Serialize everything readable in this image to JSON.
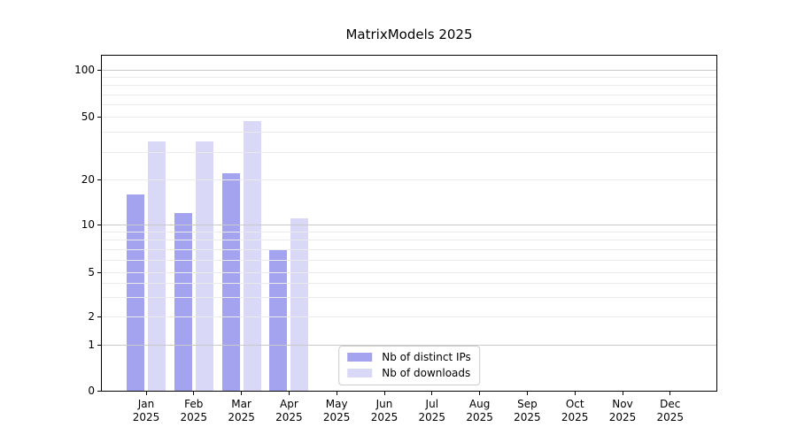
{
  "title": "MatrixModels 2025",
  "chart_data": {
    "type": "bar",
    "title": "MatrixModels 2025",
    "categories": [
      "Jan 2025",
      "Feb 2025",
      "Mar 2025",
      "Apr 2025",
      "May 2025",
      "Jun 2025",
      "Jul 2025",
      "Aug 2025",
      "Sep 2025",
      "Oct 2025",
      "Nov 2025",
      "Dec 2025"
    ],
    "series": [
      {
        "name": "Nb of distinct IPs",
        "color": "#a3a3ef",
        "values": [
          16,
          12,
          22,
          7,
          null,
          null,
          null,
          null,
          null,
          null,
          null,
          null
        ]
      },
      {
        "name": "Nb of downloads",
        "color": "#d9d9f7",
        "values": [
          35,
          35,
          47,
          11,
          null,
          null,
          null,
          null,
          null,
          null,
          null,
          null
        ]
      }
    ],
    "yscale": "symlog",
    "ylim": [
      0,
      130
    ],
    "yticks": [
      0,
      1,
      2,
      5,
      10,
      20,
      50,
      100
    ],
    "minor_gridline_values": [
      2,
      3,
      4,
      5,
      6,
      7,
      8,
      9,
      20,
      30,
      40,
      50,
      60,
      70,
      80,
      90
    ],
    "major_gridline_values": [
      1,
      10,
      100
    ],
    "grid": true,
    "legend_position": "lower center",
    "colors": {
      "major_grid": "#c9c9c9",
      "minor_grid": "#ebebeb",
      "axis": "#000000",
      "text": "#000000"
    },
    "xlabel": "",
    "ylabel": ""
  }
}
